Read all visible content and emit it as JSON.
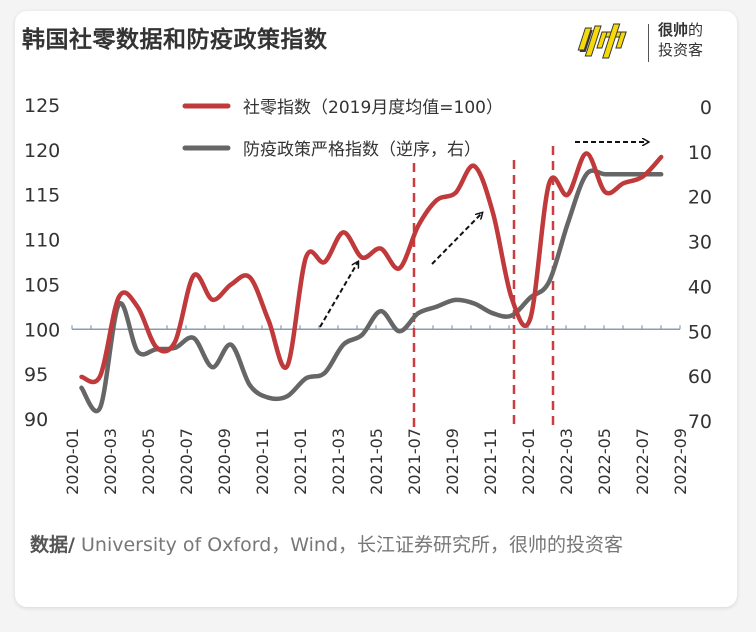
{
  "title": "韩国社零数据和防疫政策指数",
  "logo": {
    "mark_text": "帅",
    "line1_bold": "很帅",
    "line1_rest": "的",
    "line2": "投资客"
  },
  "colors": {
    "retail": "#c0393b",
    "policy": "#666666",
    "baseline": "#8a9bb4",
    "dashed": "#cc3c40",
    "logo_yellow": "#f5d90a"
  },
  "chart_data": {
    "type": "line",
    "title": "韩国社零数据和防疫政策指数",
    "x": [
      "2020-01",
      "2020-02",
      "2020-03",
      "2020-04",
      "2020-05",
      "2020-06",
      "2020-07",
      "2020-08",
      "2020-09",
      "2020-10",
      "2020-11",
      "2020-12",
      "2021-01",
      "2021-02",
      "2021-03",
      "2021-04",
      "2021-05",
      "2021-06",
      "2021-07",
      "2021-08",
      "2021-09",
      "2021-10",
      "2021-11",
      "2021-12",
      "2022-01",
      "2022-02",
      "2022-03",
      "2022-04",
      "2022-05",
      "2022-06",
      "2022-07",
      "2022-08"
    ],
    "x_tick_labels": [
      "2020-01",
      "2020-03",
      "2020-05",
      "2020-07",
      "2020-09",
      "2020-11",
      "2021-01",
      "2021-03",
      "2021-05",
      "2021-07",
      "2021-09",
      "2021-11",
      "2022-01",
      "2022-03",
      "2022-05",
      "2022-07",
      "2022-09"
    ],
    "series": [
      {
        "name": "社零指数（2019月度均值=100）",
        "axis": "left",
        "values": [
          94.7,
          94.8,
          103.6,
          102.5,
          98.0,
          98.6,
          106.0,
          103.3,
          105.0,
          105.8,
          101.0,
          95.9,
          108.0,
          107.5,
          110.8,
          108.0,
          109.0,
          106.8,
          111.5,
          114.4,
          115.2,
          118.2,
          113.0,
          103.5,
          101.2,
          116.2,
          115.0,
          119.6,
          115.3,
          116.3,
          117.0,
          119.2
        ]
      },
      {
        "name": "防疫政策严格指数（逆序，右）",
        "axis": "right",
        "values": [
          62.6,
          67.0,
          44.0,
          54.5,
          54.0,
          53.7,
          51.5,
          58.0,
          53.0,
          62.0,
          64.8,
          64.5,
          60.5,
          59.3,
          53.0,
          50.8,
          45.5,
          50.0,
          46.0,
          44.5,
          43.0,
          43.8,
          46.0,
          46.5,
          42.5,
          39.0,
          26.0,
          15.0,
          15.0,
          15.0,
          15.0,
          15.0
        ]
      }
    ],
    "ylim_left": [
      90,
      125
    ],
    "yticks_left": [
      "125",
      "120",
      "115",
      "110",
      "105",
      "100",
      "95",
      "90"
    ],
    "ylim_right": [
      0,
      70
    ],
    "right_inverted": true,
    "yticks_right": [
      "0",
      "10",
      "20",
      "30",
      "40",
      "50",
      "60",
      "70"
    ],
    "baseline_value": 100,
    "vertical_markers": [
      "2021-07",
      "2021-12",
      "2022-02"
    ],
    "legend_position": "top-center",
    "xlabel": "",
    "ylabel": "",
    "grid": false
  },
  "footer": {
    "source_label": "数据/",
    "source_text": " University of Oxford，Wind，长江证券研究所，很帅的投资客"
  }
}
